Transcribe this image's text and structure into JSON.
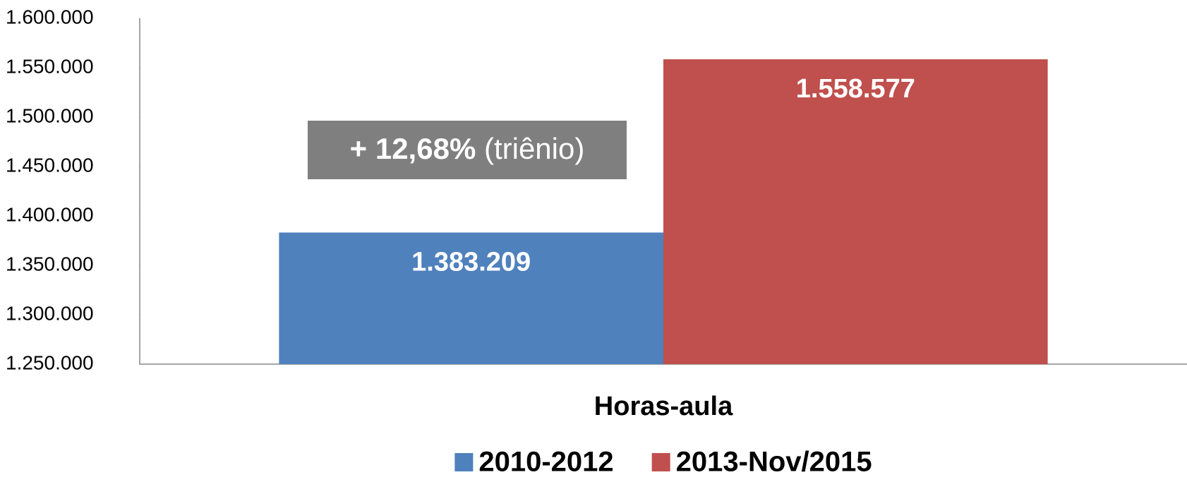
{
  "chart_data": {
    "type": "bar",
    "categories": [
      "Horas-aula"
    ],
    "series": [
      {
        "name": "2010-2012",
        "color": "#4f81bd",
        "values": [
          1383209
        ],
        "value_labels": [
          "1.383.209"
        ]
      },
      {
        "name": "2013-Nov/2015",
        "color": "#c0504d",
        "values": [
          1558577
        ],
        "value_labels": [
          "1.558.577"
        ]
      }
    ],
    "ylim": [
      1250000,
      1600000
    ],
    "yticks": [
      {
        "value": 1250000,
        "label": "1.250.000"
      },
      {
        "value": 1300000,
        "label": "1.300.000"
      },
      {
        "value": 1350000,
        "label": "1.350.000"
      },
      {
        "value": 1400000,
        "label": "1.400.000"
      },
      {
        "value": 1450000,
        "label": "1.450.000"
      },
      {
        "value": 1500000,
        "label": "1.500.000"
      },
      {
        "value": 1550000,
        "label": "1.550.000"
      },
      {
        "value": 1600000,
        "label": "1.600.000"
      }
    ],
    "annotation": {
      "bold": "+ 12,68%",
      "text": "(triênio)"
    },
    "grid": false,
    "legend": "bottom"
  }
}
